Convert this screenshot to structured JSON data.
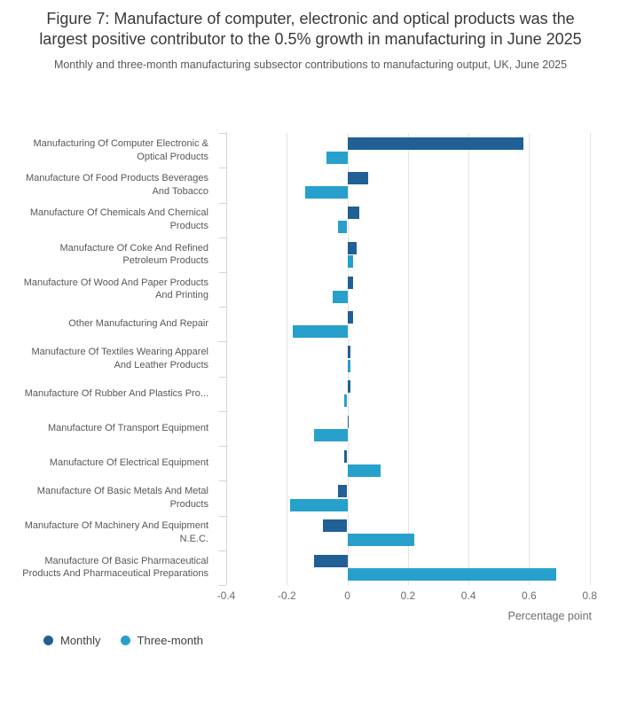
{
  "chart_data": {
    "type": "bar",
    "orientation": "horizontal",
    "title": "Figure 7: Manufacture of computer, electronic and optical products was the largest positive contributor to the 0.5% growth in manufacturing in June 2025",
    "subtitle": "Monthly and three-month manufacturing subsector contributions to manufacturing output, UK, June 2025",
    "xlabel": "Percentage point",
    "xlim": [
      -0.4,
      0.8
    ],
    "xticks": [
      "-0.4",
      "-0.2",
      "0",
      "0.2",
      "0.4",
      "0.6",
      "0.8"
    ],
    "grid": true,
    "legend_position": "bottom-left",
    "categories": [
      "Manufacturing Of Computer Electronic & Optical Products",
      "Manufacture Of Food Products Beverages And Tobacco",
      "Manufacture Of Chemicals And Chemical Products",
      "Manufacture Of Coke And Refined Petroleum Products",
      "Manufacture Of Wood And Paper Products And Printing",
      "Other Manufacturing And Repair",
      "Manufacture Of Textiles Wearing Apparel And Leather Products",
      "Manufacture Of Rubber And Plastics Pro...",
      "Manufacture Of Transport Equipment",
      "Manufacture Of Electrical Equipment",
      "Manufacture Of Basic Metals And Metal Products",
      "Manufacture Of Machinery And Equipment N.E.C.",
      "Manufacture Of Basic Pharmaceutical Products And Pharmaceutical Preparations"
    ],
    "series": [
      {
        "name": "Monthly",
        "color": "#206095",
        "values": [
          0.58,
          0.07,
          0.04,
          0.03,
          0.02,
          0.02,
          0.01,
          0.01,
          0.005,
          -0.01,
          -0.03,
          -0.08,
          -0.11
        ]
      },
      {
        "name": "Three-month",
        "color": "#27A0CC",
        "values": [
          -0.07,
          -0.14,
          -0.03,
          0.02,
          -0.05,
          -0.18,
          0.01,
          -0.01,
          -0.11,
          0.11,
          -0.19,
          0.22,
          0.69
        ]
      }
    ]
  },
  "colors": {
    "monthly_bar": "#206095",
    "three_month_bar": "#27A0CC",
    "gridline": "#e4e4e4",
    "category_axis": "#cdd7de",
    "title_text": "#383838",
    "subtitle_text": "#595959",
    "category_label_text": "#55585b",
    "tick_label_text": "#6e6e6e"
  }
}
